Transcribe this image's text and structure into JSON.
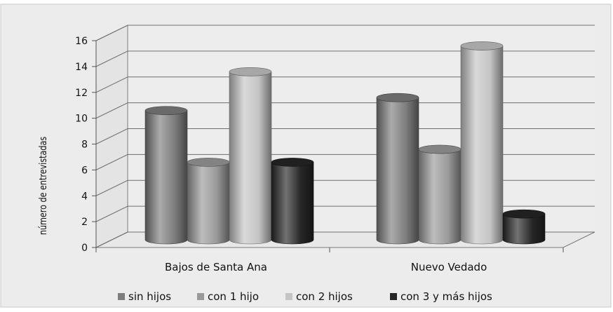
{
  "chart_data": {
    "type": "bar",
    "style": "3d-cylinder",
    "title": "",
    "xlabel": "",
    "ylabel": "número de entrevistadas",
    "ylim": [
      0,
      16
    ],
    "yticks": [
      0,
      2,
      4,
      6,
      8,
      10,
      12,
      14,
      16
    ],
    "grid": true,
    "legend_position": "bottom",
    "categories": [
      "Bajos de Santa Ana",
      "Nuevo Vedado"
    ],
    "series": [
      {
        "name": "sin hijos",
        "color": "#7d7d7d",
        "values": [
          10,
          11
        ]
      },
      {
        "name": "con 1 hijo",
        "color": "#9a9a9a",
        "values": [
          6,
          7
        ]
      },
      {
        "name": "con 2 hijos",
        "color": "#c4c4c4",
        "values": [
          13,
          15
        ]
      },
      {
        "name": "con 3 y más hijos",
        "color": "#262626",
        "values": [
          6,
          2
        ]
      }
    ]
  }
}
